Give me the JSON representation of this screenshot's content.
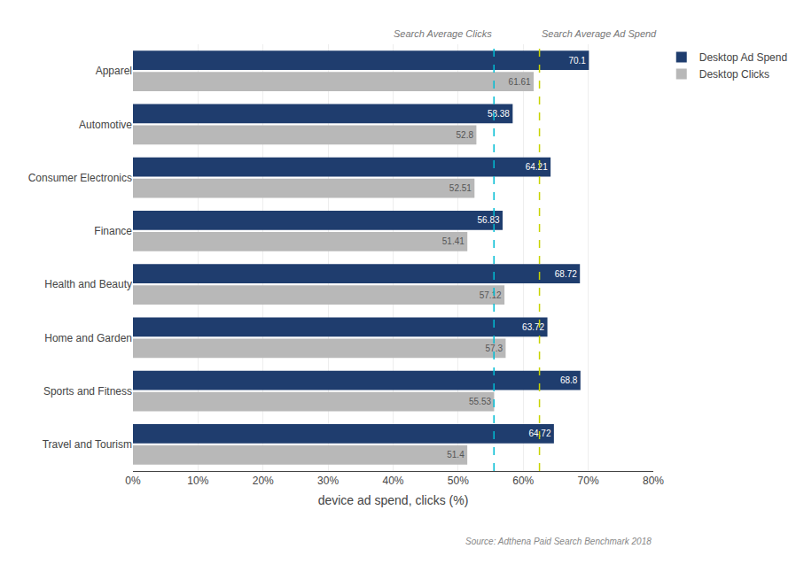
{
  "chart_data": {
    "type": "bar",
    "orientation": "horizontal",
    "categories": [
      "Travel and Tourism",
      "Sports and Fitness",
      "Home and Garden",
      "Health and Beauty",
      "Finance",
      "Consumer Electronics",
      "Automotive",
      "Apparel"
    ],
    "series": [
      {
        "name": "Desktop Ad Spend",
        "color": "#1f3d6e",
        "values": [
          64.72,
          68.8,
          63.72,
          68.72,
          56.83,
          64.21,
          58.38,
          70.1
        ]
      },
      {
        "name": "Desktop Clicks",
        "color": "#b8b8b8",
        "values": [
          51.4,
          55.53,
          57.3,
          57.12,
          51.41,
          52.51,
          52.8,
          61.61
        ]
      }
    ],
    "xlabel": "device ad spend, clicks (%)",
    "xlim": [
      0,
      80
    ],
    "xticks": [
      {
        "value": 0,
        "label": "0%"
      },
      {
        "value": 10,
        "label": "10%"
      },
      {
        "value": 20,
        "label": "20%"
      },
      {
        "value": 30,
        "label": "30%"
      },
      {
        "value": 40,
        "label": "40%"
      },
      {
        "value": 50,
        "label": "50%"
      },
      {
        "value": 60,
        "label": "60%"
      },
      {
        "value": 70,
        "label": "70%"
      },
      {
        "value": 80,
        "label": "80%"
      }
    ],
    "grid": true,
    "data_labels": true,
    "legend": "upper right",
    "reference_lines": [
      {
        "value": 55.5,
        "label": "Search Average Clicks",
        "color": "#00bcd4"
      },
      {
        "value": 62.5,
        "label": "Search Average Ad Spend",
        "color": "#c8d400"
      }
    ],
    "source": "Source: Adthena Paid Search Benchmark 2018"
  }
}
